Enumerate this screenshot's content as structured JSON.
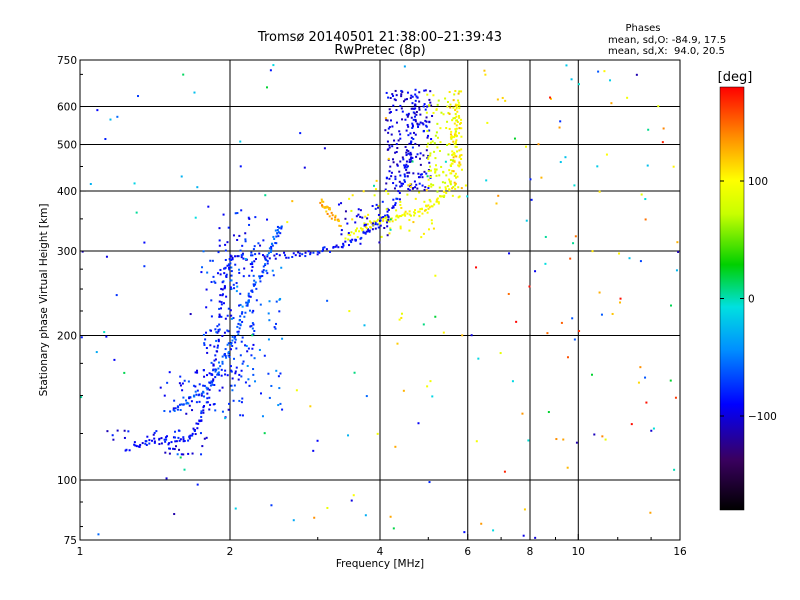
{
  "chart_data": {
    "type": "scatter",
    "title": "Tromsø 20140501 21:38:00–21:39:43",
    "subtitle": "RwPretec (8p)",
    "xlabel": "Frequency [MHz]",
    "ylabel": "Stationary phase Virtual Height [km]",
    "x_scale": "log",
    "y_scale": "log",
    "xlim": [
      1,
      16
    ],
    "ylim": [
      75,
      750
    ],
    "x_ticks": [
      1,
      2,
      4,
      6,
      8,
      10,
      16
    ],
    "x_tick_labels": [
      "1",
      "2",
      "4",
      "6",
      "8",
      "10",
      "16"
    ],
    "x_grid": [
      2,
      4,
      6,
      8,
      10
    ],
    "y_ticks": [
      75,
      100,
      200,
      300,
      400,
      500,
      600,
      750
    ],
    "y_tick_labels": [
      "75",
      "100",
      "200",
      "300",
      "400",
      "500",
      "600",
      "750"
    ],
    "y_grid": [
      100,
      200,
      300,
      400,
      500,
      600
    ],
    "grid": true,
    "legend": "none",
    "phase_info": {
      "heading": "Phases",
      "line_o": "mean, sd,O: -84.9, 17.5",
      "line_x": "mean, sd,X:  94.0, 20.5"
    },
    "colorbar": {
      "unit": "[deg]",
      "range": [
        -180,
        180
      ],
      "tick_values": [
        100,
        0,
        -100
      ],
      "tick_labels": [
        "100",
        "0",
        "−100"
      ],
      "colormap": "rainbow"
    },
    "traces": [
      {
        "name": "",
        "phase": -100,
        "points": [
          [
            1.28,
            118
          ],
          [
            1.34,
            119
          ],
          [
            1.42,
            121
          ],
          [
            1.5,
            121
          ],
          [
            1.58,
            121
          ],
          [
            1.65,
            122
          ],
          [
            1.7,
            128
          ],
          [
            1.75,
            135
          ],
          [
            1.8,
            148
          ],
          [
            1.85,
            165
          ],
          [
            1.88,
            185
          ],
          [
            1.9,
            210
          ],
          [
            1.93,
            240
          ],
          [
            1.96,
            270
          ],
          [
            2.0,
            290
          ],
          [
            2.05,
            292
          ],
          [
            2.2,
            292
          ],
          [
            2.4,
            293
          ],
          [
            2.6,
            294
          ],
          [
            2.8,
            296
          ],
          [
            3.0,
            298
          ],
          [
            3.2,
            303
          ],
          [
            3.4,
            310
          ],
          [
            3.6,
            320
          ],
          [
            3.8,
            330
          ],
          [
            4.0,
            345
          ],
          [
            4.2,
            365
          ],
          [
            4.35,
            390
          ],
          [
            4.5,
            430
          ],
          [
            4.6,
            480
          ],
          [
            4.65,
            530
          ],
          [
            4.7,
            600
          ],
          [
            4.75,
            650
          ]
        ]
      },
      {
        "name": "",
        "phase": -80,
        "points": [
          [
            1.55,
            140
          ],
          [
            1.62,
            145
          ],
          [
            1.7,
            150
          ],
          [
            1.78,
            155
          ],
          [
            1.85,
            160
          ],
          [
            1.9,
            170
          ],
          [
            1.95,
            180
          ],
          [
            2.0,
            190
          ],
          [
            2.05,
            200
          ],
          [
            2.1,
            215
          ],
          [
            2.15,
            230
          ],
          [
            2.2,
            245
          ],
          [
            2.3,
            260
          ],
          [
            2.35,
            280
          ],
          [
            2.4,
            300
          ],
          [
            2.45,
            315
          ],
          [
            2.5,
            330
          ],
          [
            2.55,
            340
          ]
        ]
      },
      {
        "name": "",
        "phase": 95,
        "points": [
          [
            3.4,
            320
          ],
          [
            3.6,
            330
          ],
          [
            3.8,
            340
          ],
          [
            4.0,
            346
          ],
          [
            4.2,
            350
          ],
          [
            4.4,
            355
          ],
          [
            4.6,
            358
          ],
          [
            4.8,
            363
          ],
          [
            5.0,
            370
          ],
          [
            5.2,
            380
          ],
          [
            5.4,
            395
          ],
          [
            5.55,
            420
          ],
          [
            5.6,
            460
          ],
          [
            5.65,
            500
          ],
          [
            5.7,
            540
          ],
          [
            5.72,
            580
          ],
          [
            5.75,
            620
          ]
        ]
      },
      {
        "name": "",
        "phase": 130,
        "points": [
          [
            3.05,
            380
          ],
          [
            3.1,
            372
          ],
          [
            3.15,
            365
          ],
          [
            3.25,
            350
          ],
          [
            3.35,
            340
          ]
        ]
      }
    ],
    "clusters": [
      {
        "phase": -105,
        "xr": [
          1.12,
          1.85
        ],
        "yr": [
          113,
          128
        ],
        "n": 40
      },
      {
        "phase": -95,
        "xr": [
          1.45,
          2.1
        ],
        "yr": [
          135,
          170
        ],
        "n": 60
      },
      {
        "phase": -90,
        "xr": [
          1.75,
          2.25
        ],
        "yr": [
          165,
          300
        ],
        "n": 120
      },
      {
        "phase": -75,
        "xr": [
          2.0,
          2.55
        ],
        "yr": [
          135,
          280
        ],
        "n": 70
      },
      {
        "phase": -100,
        "xr": [
          1.9,
          2.5
        ],
        "yr": [
          300,
          370
        ],
        "n": 30
      },
      {
        "phase": -110,
        "xr": [
          4.1,
          5.1
        ],
        "yr": [
          400,
          650
        ],
        "n": 200
      },
      {
        "phase": 80,
        "xr": [
          4.95,
          5.8
        ],
        "yr": [
          380,
          650
        ],
        "n": 90
      },
      {
        "phase": 110,
        "xr": [
          5.5,
          5.85
        ],
        "yr": [
          400,
          650
        ],
        "n": 60
      },
      {
        "phase": 100,
        "xr": [
          3.5,
          5.2
        ],
        "yr": [
          315,
          420
        ],
        "n": 50
      },
      {
        "phase": -110,
        "xr": [
          3.3,
          4.2
        ],
        "yr": [
          310,
          380
        ],
        "n": 40
      }
    ],
    "scattered": [
      {
        "phase": -20,
        "xr": [
          1.0,
          16.0
        ],
        "yr": [
          75,
          750
        ],
        "n": 70
      },
      {
        "phase": 110,
        "xr": [
          2.5,
          16.0
        ],
        "yr": [
          75,
          750
        ],
        "n": 55
      },
      {
        "phase": -100,
        "xr": [
          1.0,
          16.0
        ],
        "yr": [
          75,
          750
        ],
        "n": 55
      },
      {
        "phase": 150,
        "xr": [
          5.0,
          16.0
        ],
        "yr": [
          85,
          650
        ],
        "n": 30
      }
    ]
  }
}
